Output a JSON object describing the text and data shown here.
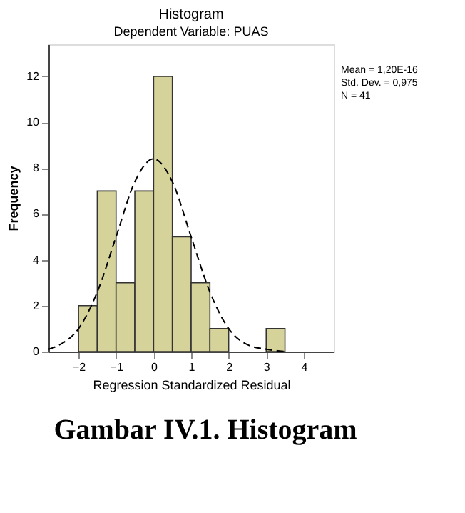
{
  "chart_data": {
    "type": "histogram",
    "title": "Histogram",
    "subtitle": "Dependent Variable: PUAS",
    "xlabel": "Regression Standardized Residual",
    "ylabel": "Frequency",
    "bins": [
      -2,
      -1.5,
      -1,
      -0.5,
      0,
      0.5,
      1,
      1.5,
      2,
      2.5,
      3,
      3.5
    ],
    "values": [
      2,
      7,
      3,
      7,
      12,
      5,
      3,
      1,
      0,
      0,
      1
    ],
    "color": "#d6d39a",
    "series": [
      {
        "type": "line",
        "color": "#000000",
        "line_style": "dashed",
        "x": [
          -2.8,
          -2.5,
          -2,
          -1.5,
          -1,
          -0.5,
          0,
          0.5,
          1,
          1.5,
          2,
          2.5,
          3,
          3.5
        ],
        "values": [
          0.1,
          0.3,
          1.0,
          2.6,
          5.0,
          7.4,
          8.4,
          7.4,
          5.0,
          2.6,
          1.0,
          0.3,
          0.1,
          0.0
        ]
      }
    ],
    "annotations": [
      "Mean = 1,20E-16",
      "Std. Dev. = 0,975",
      "N = 41",
      "Gambar IV.1. Histogram"
    ],
    "xlim": [
      -2.8,
      4.8
    ],
    "ylim": [
      0,
      13.4
    ],
    "xticks": [
      -2,
      -1,
      0,
      1,
      2,
      3,
      4
    ],
    "yticks": [
      0,
      2,
      4,
      6,
      8,
      10,
      12
    ],
    "grid": false
  }
}
